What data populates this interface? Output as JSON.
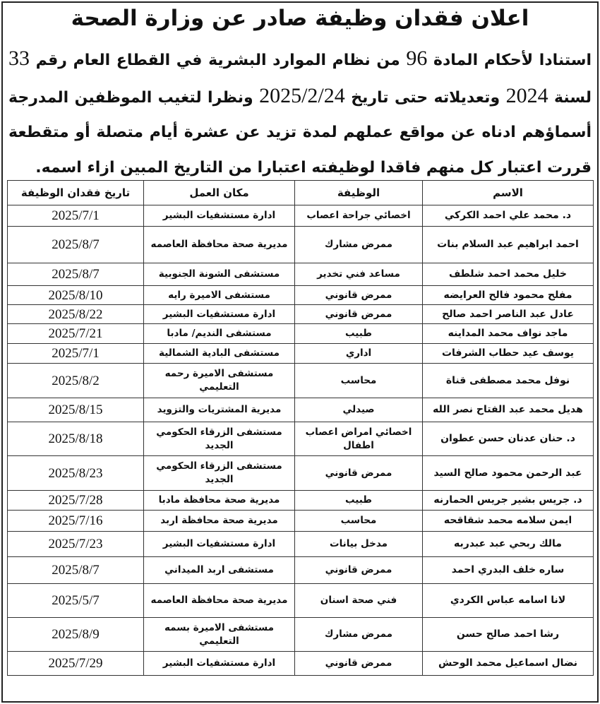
{
  "title": "اعلان فقدان وظيفة صادر عن وزارة الصحة",
  "paragraph": {
    "p1": "استنادا لأحكام المادة ",
    "article": "96",
    "p2": " من نظام الموارد البشرية في القطاع العام رقم ",
    "law_no": "33",
    "p3": " لسنة ",
    "year": "2024",
    "p4": " وتعديلاته حتى تاريخ ",
    "date": "2025/2/24",
    "p5": " ونظرا لتغيب الموظفين المدرجة أسماؤهم ادناه عن مواقع عملهم لمدة تزيد عن عشرة أيام متصلة أو متقطعة قررت اعتبار كل منهم فاقدا لوظيفته اعتبارا من التاريخ المبين ازاء اسمه."
  },
  "table": {
    "headers": [
      "الاسم",
      "الوظيفة",
      "مكان العمل",
      "تاريخ فقدان الوظيفة"
    ],
    "rows": [
      [
        "د. محمد علي احمد الكركي",
        "اخصائي جراحة اعصاب",
        "ادارة مستشفيات البشير",
        "2025/7/1"
      ],
      [
        "احمد ابراهيم عبد السلام بنات",
        "ممرض مشارك",
        "مديرية صحة محافظة العاصمه",
        "2025/8/7"
      ],
      [
        "خليل محمد احمد شلطف",
        "مساعد فني تخدير",
        "مستشفى الشونة الجنوبية",
        "2025/8/7"
      ],
      [
        "مفلح محمود فالح العرايضه",
        "ممرض قانوني",
        "مستشفى الاميرة رايه",
        "2025/8/10"
      ],
      [
        "عادل عبد الناصر احمد صالح",
        "ممرض قانوني",
        "ادارة مستشفيات البشير",
        "2025/8/22"
      ],
      [
        "ماجد نواف محمد المداينه",
        "طبيب",
        "مستشفى النديم/ مادبا",
        "2025/7/21"
      ],
      [
        "يوسف عيد حطاب الشرفات",
        "اداري",
        "مستشفى البادية الشمالية",
        "2025/7/1"
      ],
      [
        "نوفل محمد مصطفى قناة",
        "محاسب",
        "مستشفى الاميرة رحمه التعليمي",
        "2025/8/2"
      ],
      [
        "هديل محمد عبد الفتاح نصر الله",
        "صيدلي",
        "مديرية المشتريات والتزويد",
        "2025/8/15"
      ],
      [
        "د. حنان عدنان حسن عطوان",
        "اخصائي امراض اعصاب اطفال",
        "مستشفى الزرقاء الحكومي الجديد",
        "2025/8/18"
      ],
      [
        "عبد الرحمن محمود صالح السيد",
        "ممرض قانوني",
        "مستشفى الزرقاء الحكومي الجديد",
        "2025/8/23"
      ],
      [
        "د. جريس بشير جريس الحمارنه",
        "طبيب",
        "مديرية صحة محافظة مادبا",
        "2025/7/28"
      ],
      [
        "ايمن سلامه محمد شقاقحه",
        "محاسب",
        "مديرية صحة محافظة اربد",
        "2025/7/16"
      ],
      [
        "مالك ربحي عبد عبدربه",
        "مدخل بيانات",
        "ادارة مستشفيات البشير",
        "2025/7/23"
      ],
      [
        "ساره خلف البدري احمد",
        "ممرض قانوني",
        "مستشفى اربد الميداني",
        "2025/8/7"
      ],
      [
        "لانا اسامه عباس الكردي",
        "فني صحة اسنان",
        "مديرية صحة محافظة العاصمه",
        "2025/5/7"
      ],
      [
        "رشا احمد صالح حسن",
        "ممرض مشارك",
        "مستشفى الاميرة بسمه التعليمي",
        "2025/8/9"
      ],
      [
        "نضال اسماعيل محمد الوحش",
        "ممرض قانوني",
        "ادارة مستشفيات البشير",
        "2025/7/29"
      ]
    ]
  }
}
